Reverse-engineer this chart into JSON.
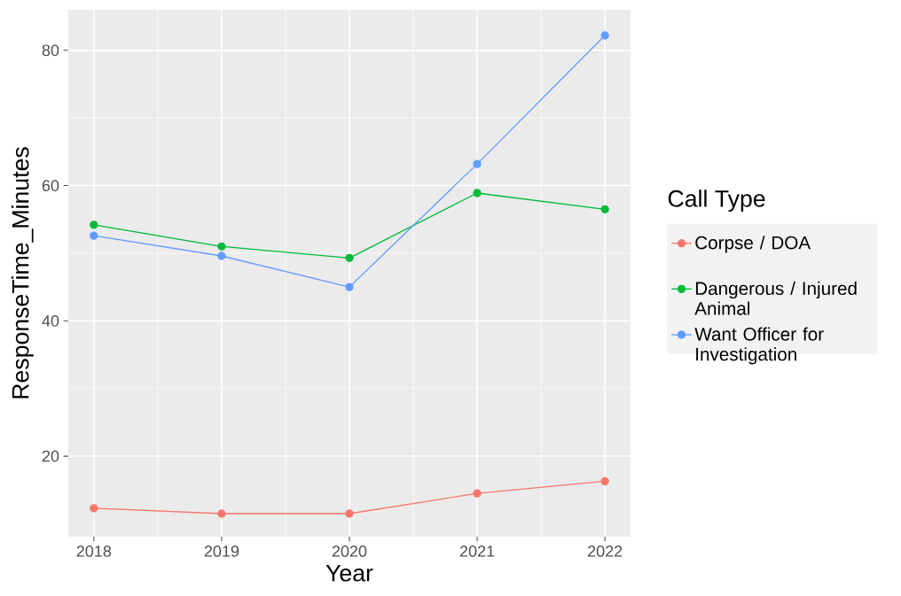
{
  "chart_data": {
    "type": "line",
    "xlabel": "Year",
    "ylabel": "ResponseTime_Minutes",
    "legend_title": "Call Type",
    "x": [
      2018,
      2019,
      2020,
      2021,
      2022
    ],
    "xlim": [
      2017.8,
      2022.2
    ],
    "xticks": [
      2018,
      2019,
      2020,
      2021,
      2022
    ],
    "ylim": [
      8.1,
      86.0
    ],
    "yticks": [
      20,
      40,
      60,
      80
    ],
    "grid": true,
    "legend": "right",
    "marker": "circle",
    "line_style": "solid",
    "series": [
      {
        "name": "Corpse / DOA",
        "color": "#f8766d",
        "values": [
          12.3,
          11.5,
          11.5,
          14.5,
          16.3
        ]
      },
      {
        "name": "Dangerous / Injured Animal",
        "color": "#00ba38",
        "values": [
          54.2,
          51.0,
          49.3,
          58.9,
          56.5
        ]
      },
      {
        "name": "Want Officer for Investigation",
        "color": "#619cff",
        "values": [
          52.6,
          49.6,
          45.0,
          63.2,
          82.2
        ]
      }
    ]
  }
}
